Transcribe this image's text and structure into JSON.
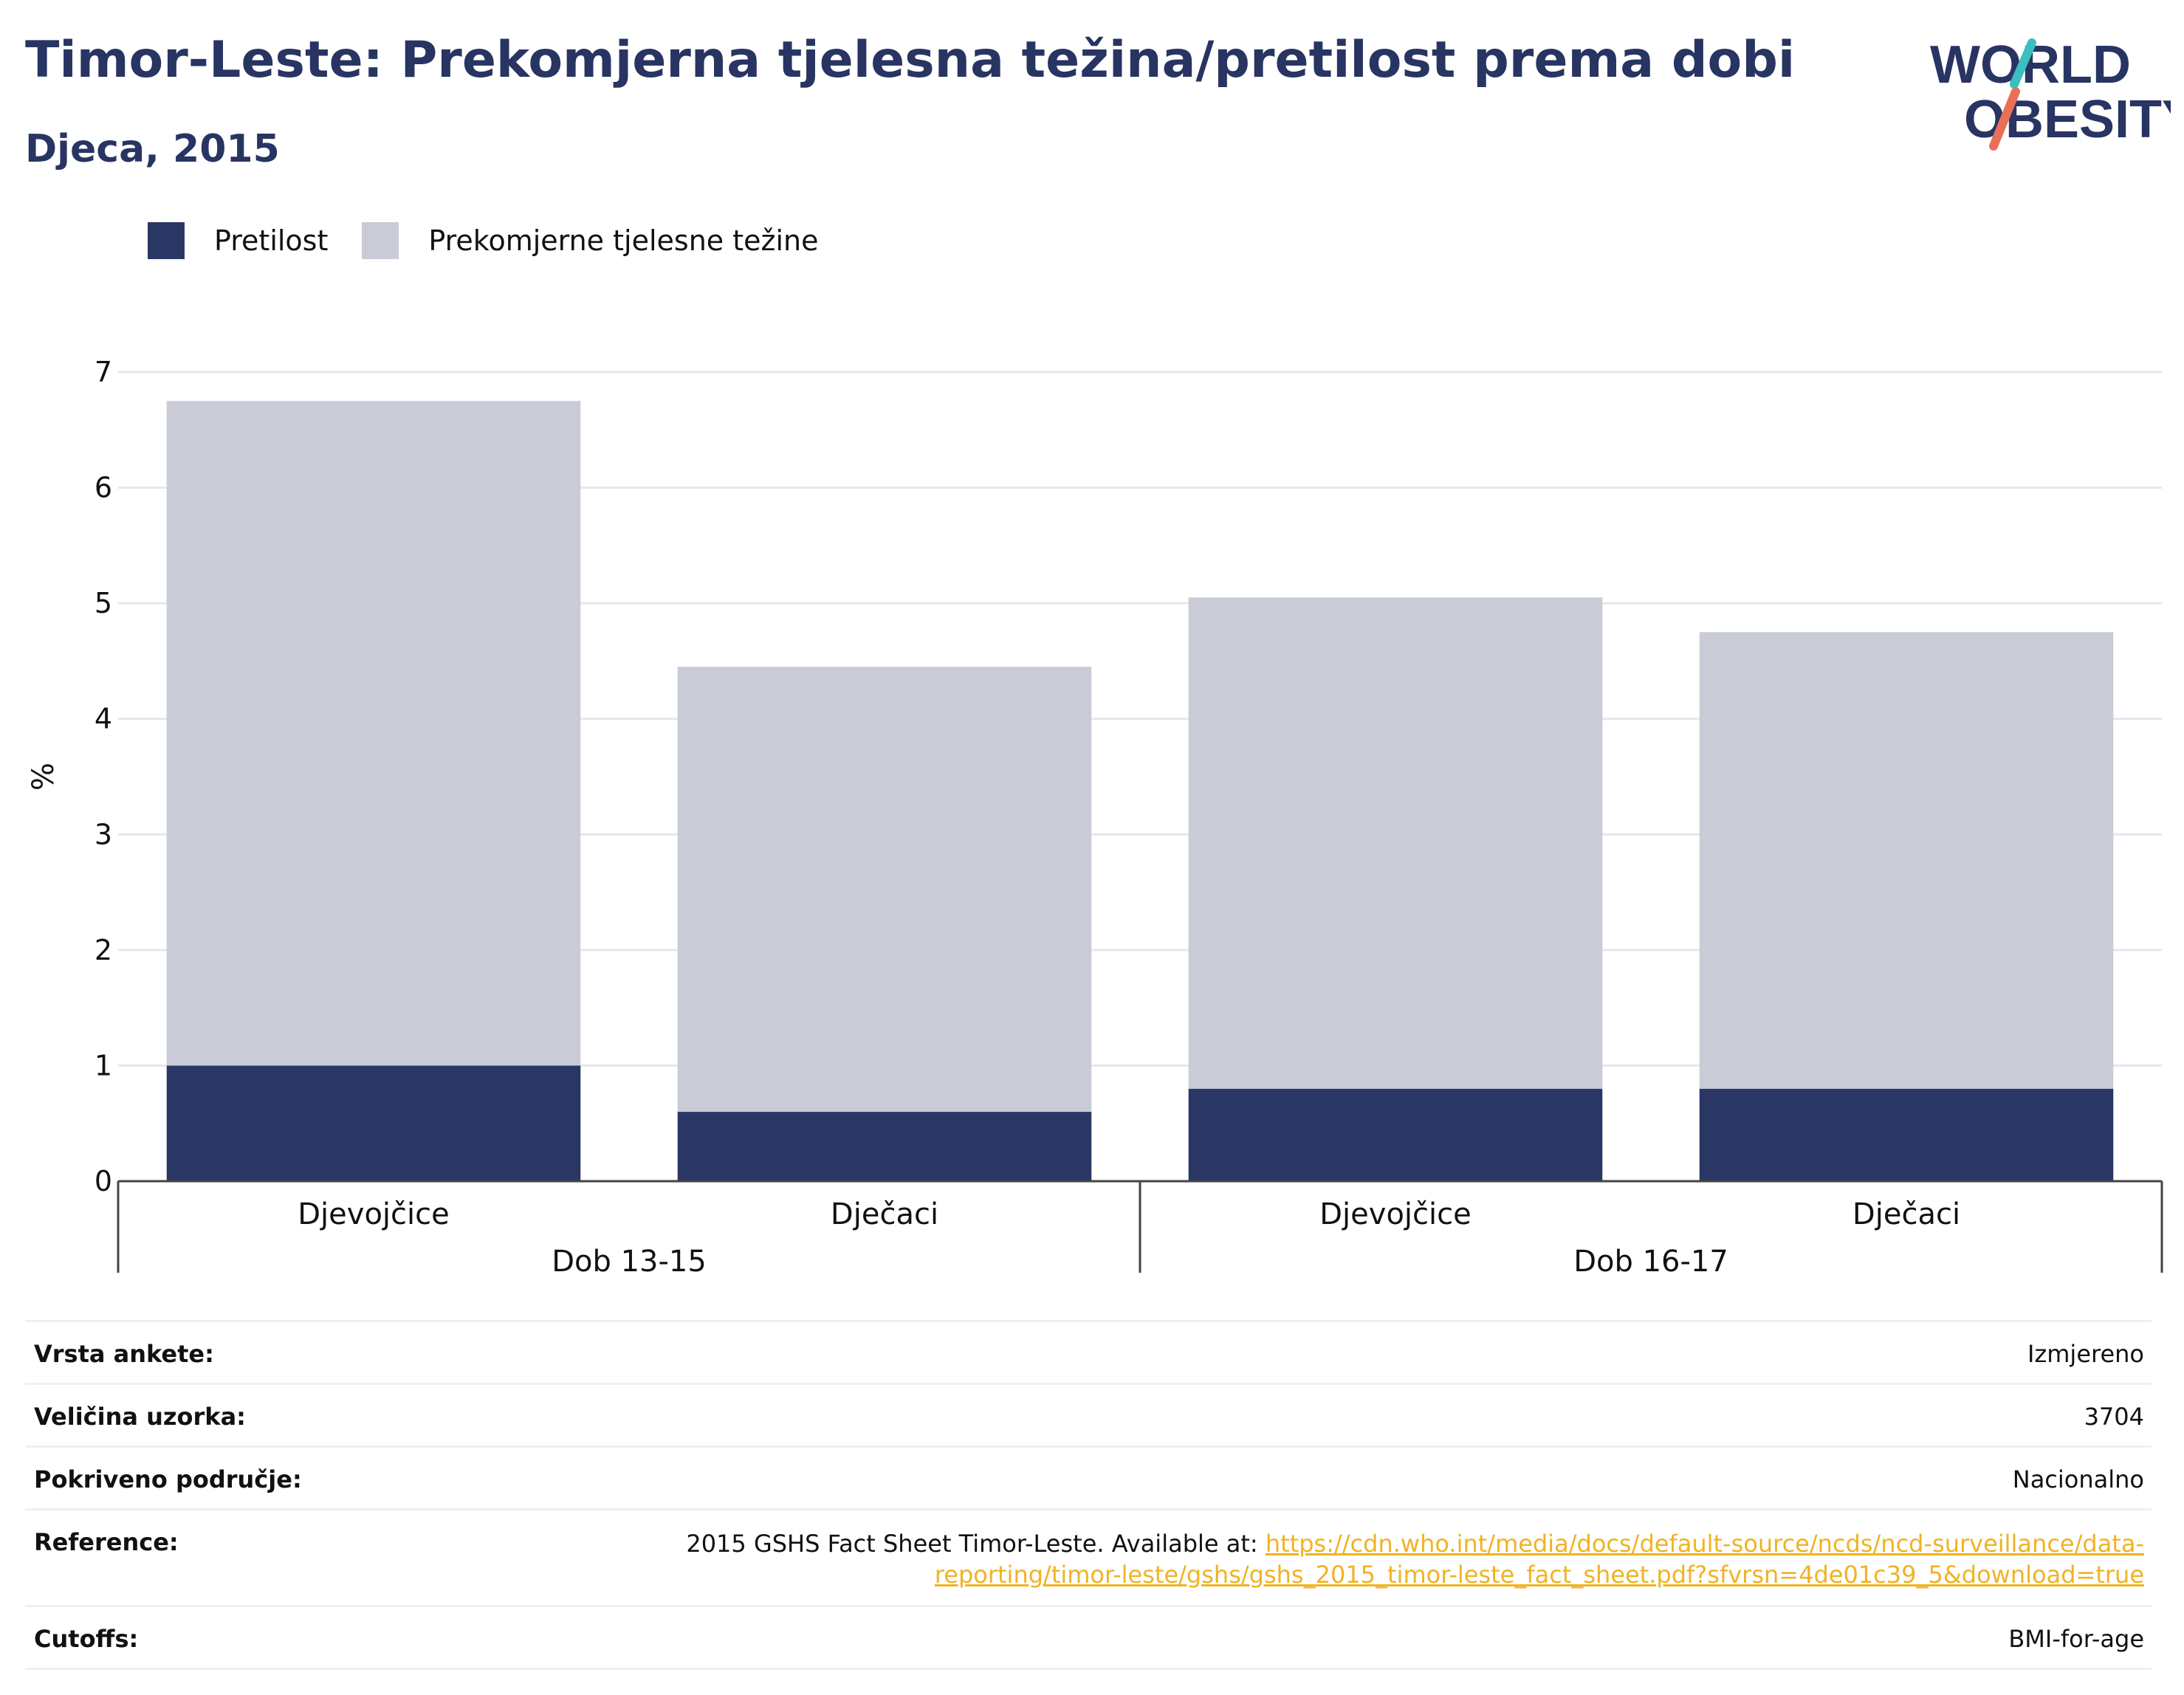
{
  "header": {
    "title": "Timor-Leste: Prekomjerna tjelesna težina/pretilost prema dobi",
    "subtitle": "Djeca, 2015",
    "logo_line1": "WORLD",
    "logo_line2": "OBESITY"
  },
  "colors": {
    "obesity": "#2a3664",
    "overweight": "#c9cbd6",
    "title": "#283462",
    "link": "#f0b323",
    "logo_teal": "#3cbfbf",
    "logo_coral": "#e8705a"
  },
  "chart_data": {
    "type": "bar",
    "stacked": true,
    "ylabel": "%",
    "ylim": [
      0,
      7
    ],
    "yticks": [
      "0",
      "1",
      "2",
      "3",
      "4",
      "5",
      "6",
      "7"
    ],
    "grid": true,
    "legend_position": "top-left",
    "groups": [
      {
        "label": "Dob 13-15",
        "categories": [
          "Djevojčice",
          "Dječaci"
        ]
      },
      {
        "label": "Dob 16-17",
        "categories": [
          "Djevojčice",
          "Dječaci"
        ]
      }
    ],
    "series": [
      {
        "name": "Pretilost",
        "values": [
          1.0,
          0.6,
          0.8,
          0.8
        ]
      },
      {
        "name": "Prekomjerne tjelesne težine",
        "values": [
          5.75,
          3.85,
          4.25,
          3.95
        ]
      }
    ]
  },
  "info": {
    "survey_label": "Vrsta ankete:",
    "survey_value": "Izmjereno",
    "sample_label": "Veličina uzorka:",
    "sample_value": "3704",
    "coverage_label": "Pokriveno područje:",
    "coverage_value": "Nacionalno",
    "reference_label": "Reference:",
    "reference_text": "2015 GSHS Fact Sheet Timor-Leste. Available at: ",
    "reference_link_1": "https://cdn.who.int/media/docs/default-source/ncds/ncd-surveillance/data-",
    "reference_link_2": "reporting/timor-leste/gshs/gshs_2015_timor-leste_fact_sheet.pdf?sfvrsn=4de01c39_5&download=true",
    "cutoffs_label": "Cutoffs:",
    "cutoffs_value": "BMI-for-age"
  }
}
